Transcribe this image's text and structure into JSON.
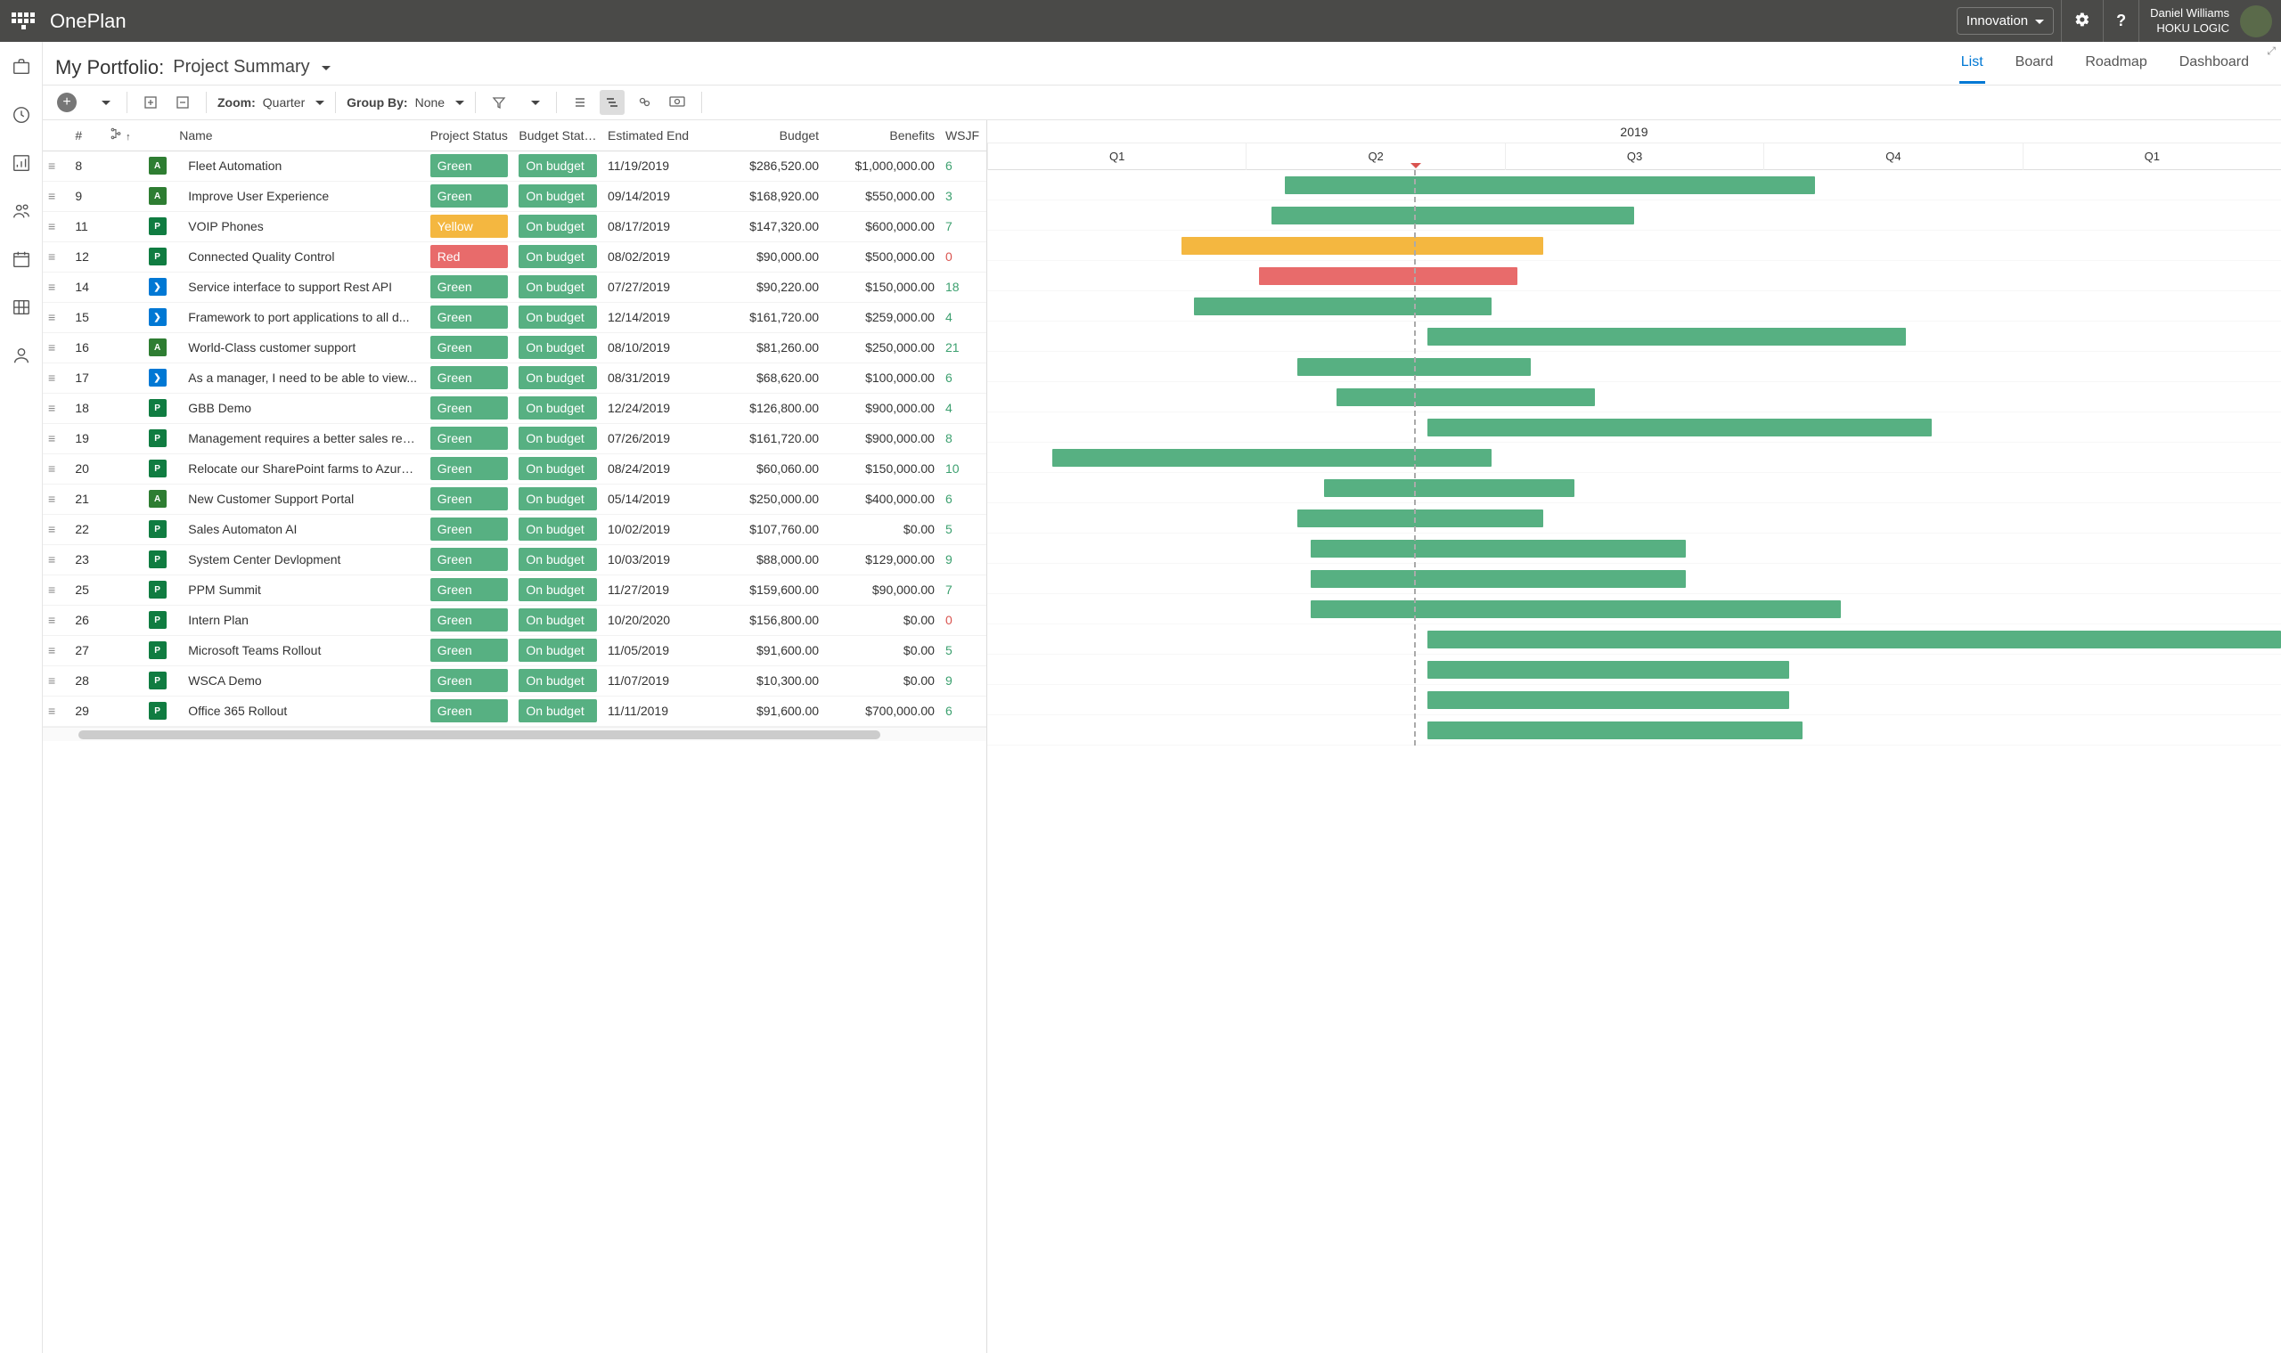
{
  "app": {
    "brand": "OnePlan"
  },
  "topbar": {
    "context": "Innovation",
    "user_name": "Daniel Williams",
    "tenant": "HOKU LOGIC"
  },
  "page": {
    "title": "My Portfolio:",
    "view": "Project Summary"
  },
  "tabs": {
    "list": "List",
    "board": "Board",
    "roadmap": "Roadmap",
    "dashboard": "Dashboard",
    "active": "list"
  },
  "toolbar": {
    "zoom_label": "Zoom:",
    "zoom_value": "Quarter",
    "groupby_label": "Group By:",
    "groupby_value": "None"
  },
  "columns": {
    "num": "#",
    "wbs": "",
    "name": "Name",
    "project_status": "Project Status",
    "budget_status": "Budget Status",
    "estimated_end": "Estimated End",
    "budget": "Budget",
    "benefits": "Benefits",
    "wsjf": "WSJF"
  },
  "status_colors": {
    "Green": "pill-green",
    "Yellow": "pill-yellow",
    "Red": "pill-red"
  },
  "icon_types": {
    "A": "ic-A",
    "P": "ic-P",
    "D": "ic-D"
  },
  "gantt": {
    "year": "2019",
    "quarters": [
      "Q1",
      "Q2",
      "Q3",
      "Q4",
      "Q1"
    ],
    "pane_quarters": 5,
    "today_quarter": 1.65,
    "bar_colors": {
      "Green": "bar-green",
      "Yellow": "bar-yellow",
      "Red": "bar-red"
    }
  },
  "rows": [
    {
      "num": 8,
      "icon": "A",
      "name": "Fleet Automation",
      "project_status": "Green",
      "budget_status": "On budget",
      "end": "11/19/2019",
      "budget": "$286,520.00",
      "benefits": "$1,000,000.00",
      "wsjf": "6",
      "gs": 1.15,
      "ge": 3.2,
      "bar": "Green"
    },
    {
      "num": 9,
      "icon": "A",
      "name": "Improve User Experience",
      "project_status": "Green",
      "budget_status": "On budget",
      "end": "09/14/2019",
      "budget": "$168,920.00",
      "benefits": "$550,000.00",
      "wsjf": "3",
      "gs": 1.1,
      "ge": 2.5,
      "bar": "Green"
    },
    {
      "num": 11,
      "icon": "P",
      "name": "VOIP Phones",
      "project_status": "Yellow",
      "budget_status": "On budget",
      "end": "08/17/2019",
      "budget": "$147,320.00",
      "benefits": "$600,000.00",
      "wsjf": "7",
      "gs": 0.75,
      "ge": 2.15,
      "bar": "Yellow"
    },
    {
      "num": 12,
      "icon": "P",
      "name": "Connected Quality Control",
      "project_status": "Red",
      "budget_status": "On budget",
      "end": "08/02/2019",
      "budget": "$90,000.00",
      "benefits": "$500,000.00",
      "wsjf": "0",
      "gs": 1.05,
      "ge": 2.05,
      "bar": "Red"
    },
    {
      "num": 14,
      "icon": "D",
      "name": "Service interface to support Rest API",
      "project_status": "Green",
      "budget_status": "On budget",
      "end": "07/27/2019",
      "budget": "$90,220.00",
      "benefits": "$150,000.00",
      "wsjf": "18",
      "gs": 0.8,
      "ge": 1.95,
      "bar": "Green"
    },
    {
      "num": 15,
      "icon": "D",
      "name": "Framework to port applications to all d...",
      "project_status": "Green",
      "budget_status": "On budget",
      "end": "12/14/2019",
      "budget": "$161,720.00",
      "benefits": "$259,000.00",
      "wsjf": "4",
      "gs": 1.7,
      "ge": 3.55,
      "bar": "Green"
    },
    {
      "num": 16,
      "icon": "A",
      "name": "World-Class customer support",
      "project_status": "Green",
      "budget_status": "On budget",
      "end": "08/10/2019",
      "budget": "$81,260.00",
      "benefits": "$250,000.00",
      "wsjf": "21",
      "gs": 1.2,
      "ge": 2.1,
      "bar": "Green"
    },
    {
      "num": 17,
      "icon": "D",
      "name": "As a manager, I need to be able to view...",
      "project_status": "Green",
      "budget_status": "On budget",
      "end": "08/31/2019",
      "budget": "$68,620.00",
      "benefits": "$100,000.00",
      "wsjf": "6",
      "gs": 1.35,
      "ge": 2.35,
      "bar": "Green"
    },
    {
      "num": 18,
      "icon": "P",
      "name": "GBB Demo",
      "project_status": "Green",
      "budget_status": "On budget",
      "end": "12/24/2019",
      "budget": "$126,800.00",
      "benefits": "$900,000.00",
      "wsjf": "4",
      "gs": 1.7,
      "ge": 3.65,
      "bar": "Green"
    },
    {
      "num": 19,
      "icon": "P",
      "name": "Management requires a better sales rep...",
      "project_status": "Green",
      "budget_status": "On budget",
      "end": "07/26/2019",
      "budget": "$161,720.00",
      "benefits": "$900,000.00",
      "wsjf": "8",
      "gs": 0.25,
      "ge": 1.95,
      "bar": "Green"
    },
    {
      "num": 20,
      "icon": "P",
      "name": "Relocate our SharePoint farms to Azure ...",
      "project_status": "Green",
      "budget_status": "On budget",
      "end": "08/24/2019",
      "budget": "$60,060.00",
      "benefits": "$150,000.00",
      "wsjf": "10",
      "gs": 1.3,
      "ge": 2.27,
      "bar": "Green"
    },
    {
      "num": 21,
      "icon": "A",
      "name": "New Customer Support Portal",
      "project_status": "Green",
      "budget_status": "On budget",
      "end": "05/14/2019",
      "budget": "$250,000.00",
      "benefits": "$400,000.00",
      "wsjf": "6",
      "gs": 1.2,
      "ge": 2.15,
      "bar": "Green"
    },
    {
      "num": 22,
      "icon": "P",
      "name": "Sales Automaton AI",
      "project_status": "Green",
      "budget_status": "On budget",
      "end": "10/02/2019",
      "budget": "$107,760.00",
      "benefits": "$0.00",
      "wsjf": "5",
      "gs": 1.25,
      "ge": 2.7,
      "bar": "Green"
    },
    {
      "num": 23,
      "icon": "P",
      "name": "System Center Devlopment",
      "project_status": "Green",
      "budget_status": "On budget",
      "end": "10/03/2019",
      "budget": "$88,000.00",
      "benefits": "$129,000.00",
      "wsjf": "9",
      "gs": 1.25,
      "ge": 2.7,
      "bar": "Green"
    },
    {
      "num": 25,
      "icon": "P",
      "name": "PPM Summit",
      "project_status": "Green",
      "budget_status": "On budget",
      "end": "11/27/2019",
      "budget": "$159,600.00",
      "benefits": "$90,000.00",
      "wsjf": "7",
      "gs": 1.25,
      "ge": 3.3,
      "bar": "Green"
    },
    {
      "num": 26,
      "icon": "P",
      "name": "Intern Plan",
      "project_status": "Green",
      "budget_status": "On budget",
      "end": "10/20/2020",
      "budget": "$156,800.00",
      "benefits": "$0.00",
      "wsjf": "0",
      "gs": 1.7,
      "ge": 5.0,
      "bar": "Green"
    },
    {
      "num": 27,
      "icon": "P",
      "name": "Microsoft Teams Rollout",
      "project_status": "Green",
      "budget_status": "On budget",
      "end": "11/05/2019",
      "budget": "$91,600.00",
      "benefits": "$0.00",
      "wsjf": "5",
      "gs": 1.7,
      "ge": 3.1,
      "bar": "Green"
    },
    {
      "num": 28,
      "icon": "P",
      "name": "WSCA Demo",
      "project_status": "Green",
      "budget_status": "On budget",
      "end": "11/07/2019",
      "budget": "$10,300.00",
      "benefits": "$0.00",
      "wsjf": "9",
      "gs": 1.7,
      "ge": 3.1,
      "bar": "Green"
    },
    {
      "num": 29,
      "icon": "P",
      "name": "Office 365 Rollout",
      "project_status": "Green",
      "budget_status": "On budget",
      "end": "11/11/2019",
      "budget": "$91,600.00",
      "benefits": "$700,000.00",
      "wsjf": "6",
      "gs": 1.7,
      "ge": 3.15,
      "bar": "Green"
    }
  ]
}
